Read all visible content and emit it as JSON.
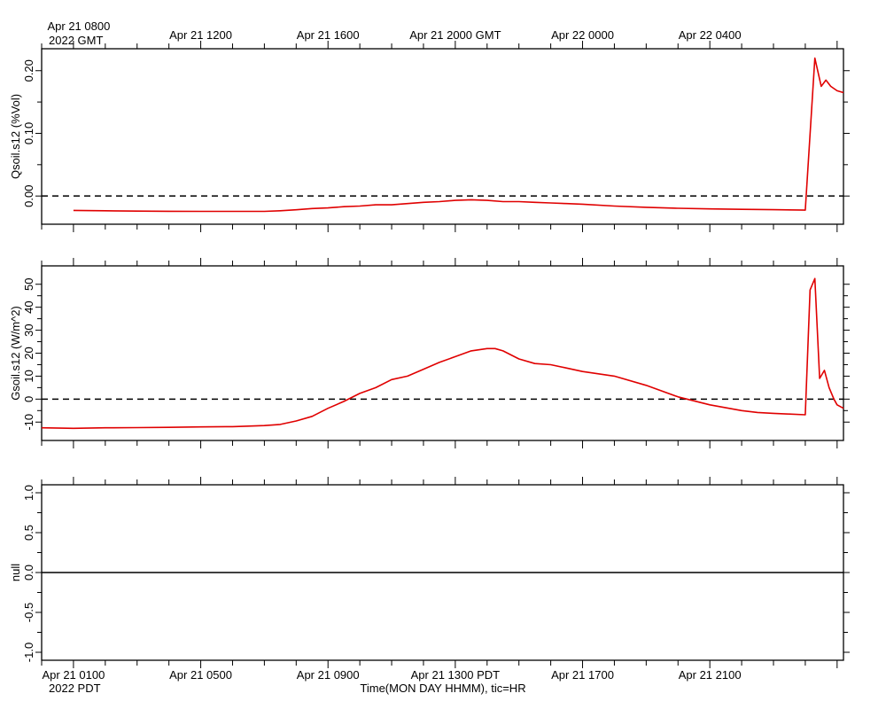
{
  "chart_data": [
    {
      "type": "line",
      "ylabel": "Qsoil.s12 (%Vol)",
      "ylim": [
        -0.045,
        0.235
      ],
      "yticks": [
        0.0,
        0.1,
        0.2
      ],
      "ytick_labels": [
        "0.00",
        "0.10",
        "0.20"
      ],
      "zero_line": "dashed",
      "series": [
        {
          "color": "#e00000",
          "x": [
            0,
            1,
            2,
            3,
            4,
            5,
            6,
            6.5,
            7,
            7.5,
            8,
            8.5,
            9,
            9.5,
            10,
            10.5,
            11,
            11.5,
            12,
            12.5,
            13,
            13.5,
            14,
            14.5,
            15,
            15.5,
            16,
            17,
            18,
            19,
            20,
            21,
            22,
            23,
            23.3,
            23.5,
            23.65,
            23.8,
            24,
            24.2
          ],
          "y": [
            -0.023,
            -0.0235,
            -0.024,
            -0.0243,
            -0.0245,
            -0.0245,
            -0.0245,
            -0.0235,
            -0.022,
            -0.02,
            -0.019,
            -0.017,
            -0.016,
            -0.014,
            -0.014,
            -0.012,
            -0.01,
            -0.009,
            -0.007,
            -0.006,
            -0.007,
            -0.009,
            -0.009,
            -0.01,
            -0.011,
            -0.012,
            -0.013,
            -0.016,
            -0.018,
            -0.0195,
            -0.0205,
            -0.0212,
            -0.0218,
            -0.0225,
            0.22,
            0.175,
            0.185,
            0.175,
            0.168,
            0.165
          ]
        }
      ]
    },
    {
      "type": "line",
      "ylabel": "Gsoil.s12 (W/m^2)",
      "ylim": [
        -18,
        58
      ],
      "yticks": [
        -10,
        0,
        10,
        20,
        30,
        40,
        50
      ],
      "ytick_labels": [
        "-10",
        "0",
        "10",
        "20",
        "30",
        "40",
        "50"
      ],
      "zero_line": "dashed",
      "series": [
        {
          "color": "#e00000",
          "x": [
            -1,
            0,
            1,
            2,
            3,
            4,
            5,
            6,
            6.5,
            7,
            7.5,
            8,
            8.5,
            9,
            9.5,
            10,
            10.5,
            11,
            11.5,
            12,
            12.5,
            13,
            13.25,
            13.5,
            14,
            14.5,
            15,
            15.5,
            16,
            17,
            18,
            19,
            20,
            21,
            21.5,
            22,
            22.5,
            23,
            23.15,
            23.3,
            23.45,
            23.6,
            23.75,
            23.9,
            24,
            24.2
          ],
          "y": [
            -12.5,
            -12.7,
            -12.5,
            -12.4,
            -12.3,
            -12.1,
            -12,
            -11.5,
            -11,
            -9.5,
            -7.5,
            -4,
            -1,
            2.5,
            5,
            8.5,
            10,
            13,
            16,
            18.5,
            21,
            22,
            22,
            21,
            17.5,
            15.5,
            15,
            13.5,
            12,
            10,
            6,
            1,
            -2.5,
            -5,
            -5.8,
            -6.2,
            -6.5,
            -6.8,
            47.5,
            52.5,
            9,
            12.5,
            5,
            0,
            -2.5,
            -4
          ]
        }
      ]
    },
    {
      "type": "line",
      "ylabel": "null",
      "ylim": [
        -1.1,
        1.1
      ],
      "yticks": [
        -1.0,
        -0.5,
        0.0,
        0.5,
        1.0
      ],
      "ytick_labels": [
        "-1.0",
        "-0.5",
        "0.0",
        "0.5",
        "1.0"
      ],
      "zero_line": "solid",
      "series": []
    }
  ],
  "time_axis": {
    "x_range": [
      -1,
      24.2
    ],
    "minor_tick_step_hours": 1,
    "top_labels": [
      {
        "x": 0,
        "lines": [
          "Apr 21 0800",
          "2022 GMT"
        ]
      },
      {
        "x": 4,
        "lines": [
          "Apr 21 1200"
        ]
      },
      {
        "x": 8,
        "lines": [
          "Apr 21 1600"
        ]
      },
      {
        "x": 12,
        "lines": [
          "Apr 21 2000 GMT"
        ]
      },
      {
        "x": 16,
        "lines": [
          "Apr 22 0000"
        ]
      },
      {
        "x": 20,
        "lines": [
          "Apr 22 0400"
        ]
      }
    ],
    "bottom_labels": [
      {
        "x": 0,
        "lines": [
          "Apr 21 0100",
          "2022 PDT"
        ]
      },
      {
        "x": 4,
        "lines": [
          "Apr 21 0500"
        ]
      },
      {
        "x": 8,
        "lines": [
          "Apr 21 0900"
        ]
      },
      {
        "x": 12,
        "lines": [
          "Apr 21 1300 PDT"
        ]
      },
      {
        "x": 16,
        "lines": [
          "Apr 21 1700"
        ]
      },
      {
        "x": 20,
        "lines": [
          "Apr 21 2100"
        ]
      }
    ],
    "xlabel": "Time(MON DAY HHMM), tic=HR"
  }
}
